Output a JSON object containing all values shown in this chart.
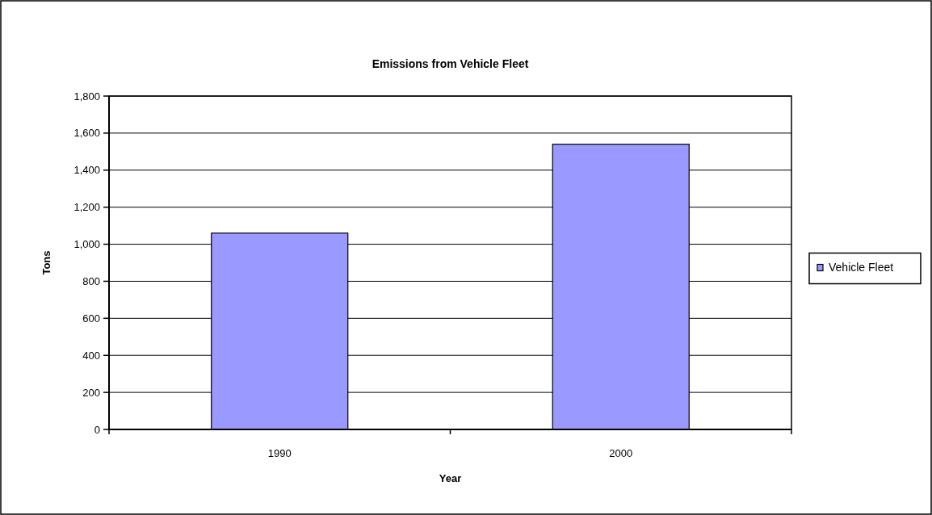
{
  "chart_data": {
    "type": "bar",
    "title": "Emissions from Vehicle Fleet",
    "xlabel": "Year",
    "ylabel": "Tons",
    "categories": [
      "1990",
      "2000"
    ],
    "series": [
      {
        "name": "Vehicle Fleet",
        "color": "#9999ff",
        "values": [
          1060,
          1540
        ]
      }
    ],
    "ylim": [
      0,
      1800
    ],
    "yticks": [
      {
        "value": 0,
        "label": "0"
      },
      {
        "value": 200,
        "label": "200"
      },
      {
        "value": 400,
        "label": "400"
      },
      {
        "value": 600,
        "label": "600"
      },
      {
        "value": 800,
        "label": "800"
      },
      {
        "value": 1000,
        "label": "1,000"
      },
      {
        "value": 1200,
        "label": "1,200"
      },
      {
        "value": 1400,
        "label": "1,400"
      },
      {
        "value": 1600,
        "label": "1,600"
      },
      {
        "value": 1800,
        "label": "1,800"
      }
    ],
    "grid": "y",
    "legend": "right"
  }
}
